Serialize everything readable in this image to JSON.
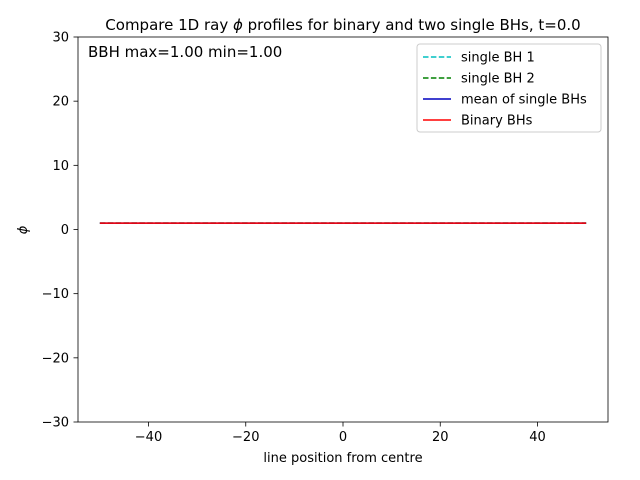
{
  "chart_data": {
    "type": "line",
    "title_prefix": "Compare 1D ray ",
    "title_symbol": "ϕ",
    "title_suffix": " profiles for binary and two single BHs, t=0.0",
    "annotation": "BBH max=1.00 min=1.00",
    "xlabel": "line position from centre",
    "ylabel": "ϕ",
    "xlim": [
      -54.5,
      54.5
    ],
    "ylim": [
      -30,
      30
    ],
    "xticks": [
      -40,
      -20,
      0,
      20,
      40
    ],
    "xtick_labels": [
      "−40",
      "−20",
      "0",
      "20",
      "40"
    ],
    "yticks": [
      -30,
      -20,
      -10,
      0,
      10,
      20,
      30
    ],
    "ytick_labels": [
      "−30",
      "−20",
      "−10",
      "0",
      "10",
      "20",
      "30"
    ],
    "grid": false,
    "legend_position": "top-right",
    "series": [
      {
        "name": "single BH 1",
        "color": "#00bfbf",
        "style": "dashed",
        "x": [
          -50,
          50
        ],
        "y": [
          1.0,
          1.0
        ]
      },
      {
        "name": "single BH 2",
        "color": "#008000",
        "style": "dashed",
        "x": [
          -50,
          50
        ],
        "y": [
          1.0,
          1.0
        ]
      },
      {
        "name": "mean of single BHs",
        "color": "#0000bf",
        "style": "solid",
        "x": [
          -50,
          50
        ],
        "y": [
          1.0,
          1.0
        ]
      },
      {
        "name": "Binary BHs",
        "color": "#ff0000",
        "style": "solid",
        "x": [
          -50,
          50
        ],
        "y": [
          1.0,
          1.0
        ]
      }
    ]
  }
}
